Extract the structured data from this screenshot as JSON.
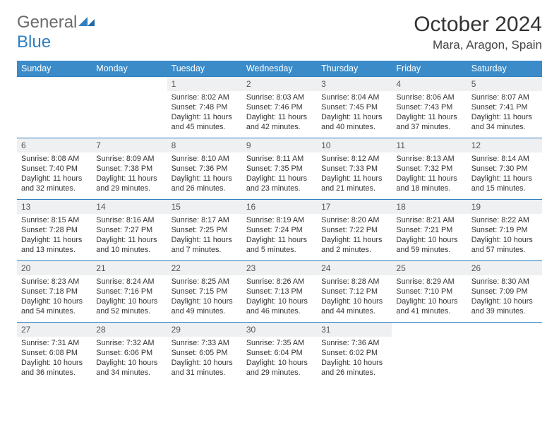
{
  "brand": {
    "part1": "General",
    "part2": "Blue"
  },
  "title": "October 2024",
  "location": "Mara, Aragon, Spain",
  "calendar": {
    "header_bg": "#3b8bc9",
    "header_fg": "#ffffff",
    "daynum_bg": "#eef0f2",
    "rule_color": "#2f7fc1",
    "font_family": "Arial",
    "days": [
      "Sunday",
      "Monday",
      "Tuesday",
      "Wednesday",
      "Thursday",
      "Friday",
      "Saturday"
    ],
    "weeks": [
      [
        null,
        null,
        {
          "n": "1",
          "sr": "8:02 AM",
          "ss": "7:48 PM",
          "dl": "11 hours and 45 minutes."
        },
        {
          "n": "2",
          "sr": "8:03 AM",
          "ss": "7:46 PM",
          "dl": "11 hours and 42 minutes."
        },
        {
          "n": "3",
          "sr": "8:04 AM",
          "ss": "7:45 PM",
          "dl": "11 hours and 40 minutes."
        },
        {
          "n": "4",
          "sr": "8:06 AM",
          "ss": "7:43 PM",
          "dl": "11 hours and 37 minutes."
        },
        {
          "n": "5",
          "sr": "8:07 AM",
          "ss": "7:41 PM",
          "dl": "11 hours and 34 minutes."
        }
      ],
      [
        {
          "n": "6",
          "sr": "8:08 AM",
          "ss": "7:40 PM",
          "dl": "11 hours and 32 minutes."
        },
        {
          "n": "7",
          "sr": "8:09 AM",
          "ss": "7:38 PM",
          "dl": "11 hours and 29 minutes."
        },
        {
          "n": "8",
          "sr": "8:10 AM",
          "ss": "7:36 PM",
          "dl": "11 hours and 26 minutes."
        },
        {
          "n": "9",
          "sr": "8:11 AM",
          "ss": "7:35 PM",
          "dl": "11 hours and 23 minutes."
        },
        {
          "n": "10",
          "sr": "8:12 AM",
          "ss": "7:33 PM",
          "dl": "11 hours and 21 minutes."
        },
        {
          "n": "11",
          "sr": "8:13 AM",
          "ss": "7:32 PM",
          "dl": "11 hours and 18 minutes."
        },
        {
          "n": "12",
          "sr": "8:14 AM",
          "ss": "7:30 PM",
          "dl": "11 hours and 15 minutes."
        }
      ],
      [
        {
          "n": "13",
          "sr": "8:15 AM",
          "ss": "7:28 PM",
          "dl": "11 hours and 13 minutes."
        },
        {
          "n": "14",
          "sr": "8:16 AM",
          "ss": "7:27 PM",
          "dl": "11 hours and 10 minutes."
        },
        {
          "n": "15",
          "sr": "8:17 AM",
          "ss": "7:25 PM",
          "dl": "11 hours and 7 minutes."
        },
        {
          "n": "16",
          "sr": "8:19 AM",
          "ss": "7:24 PM",
          "dl": "11 hours and 5 minutes."
        },
        {
          "n": "17",
          "sr": "8:20 AM",
          "ss": "7:22 PM",
          "dl": "11 hours and 2 minutes."
        },
        {
          "n": "18",
          "sr": "8:21 AM",
          "ss": "7:21 PM",
          "dl": "10 hours and 59 minutes."
        },
        {
          "n": "19",
          "sr": "8:22 AM",
          "ss": "7:19 PM",
          "dl": "10 hours and 57 minutes."
        }
      ],
      [
        {
          "n": "20",
          "sr": "8:23 AM",
          "ss": "7:18 PM",
          "dl": "10 hours and 54 minutes."
        },
        {
          "n": "21",
          "sr": "8:24 AM",
          "ss": "7:16 PM",
          "dl": "10 hours and 52 minutes."
        },
        {
          "n": "22",
          "sr": "8:25 AM",
          "ss": "7:15 PM",
          "dl": "10 hours and 49 minutes."
        },
        {
          "n": "23",
          "sr": "8:26 AM",
          "ss": "7:13 PM",
          "dl": "10 hours and 46 minutes."
        },
        {
          "n": "24",
          "sr": "8:28 AM",
          "ss": "7:12 PM",
          "dl": "10 hours and 44 minutes."
        },
        {
          "n": "25",
          "sr": "8:29 AM",
          "ss": "7:10 PM",
          "dl": "10 hours and 41 minutes."
        },
        {
          "n": "26",
          "sr": "8:30 AM",
          "ss": "7:09 PM",
          "dl": "10 hours and 39 minutes."
        }
      ],
      [
        {
          "n": "27",
          "sr": "7:31 AM",
          "ss": "6:08 PM",
          "dl": "10 hours and 36 minutes."
        },
        {
          "n": "28",
          "sr": "7:32 AM",
          "ss": "6:06 PM",
          "dl": "10 hours and 34 minutes."
        },
        {
          "n": "29",
          "sr": "7:33 AM",
          "ss": "6:05 PM",
          "dl": "10 hours and 31 minutes."
        },
        {
          "n": "30",
          "sr": "7:35 AM",
          "ss": "6:04 PM",
          "dl": "10 hours and 29 minutes."
        },
        {
          "n": "31",
          "sr": "7:36 AM",
          "ss": "6:02 PM",
          "dl": "10 hours and 26 minutes."
        },
        null,
        null
      ]
    ],
    "labels": {
      "sunrise": "Sunrise:",
      "sunset": "Sunset:",
      "daylight": "Daylight:"
    }
  }
}
